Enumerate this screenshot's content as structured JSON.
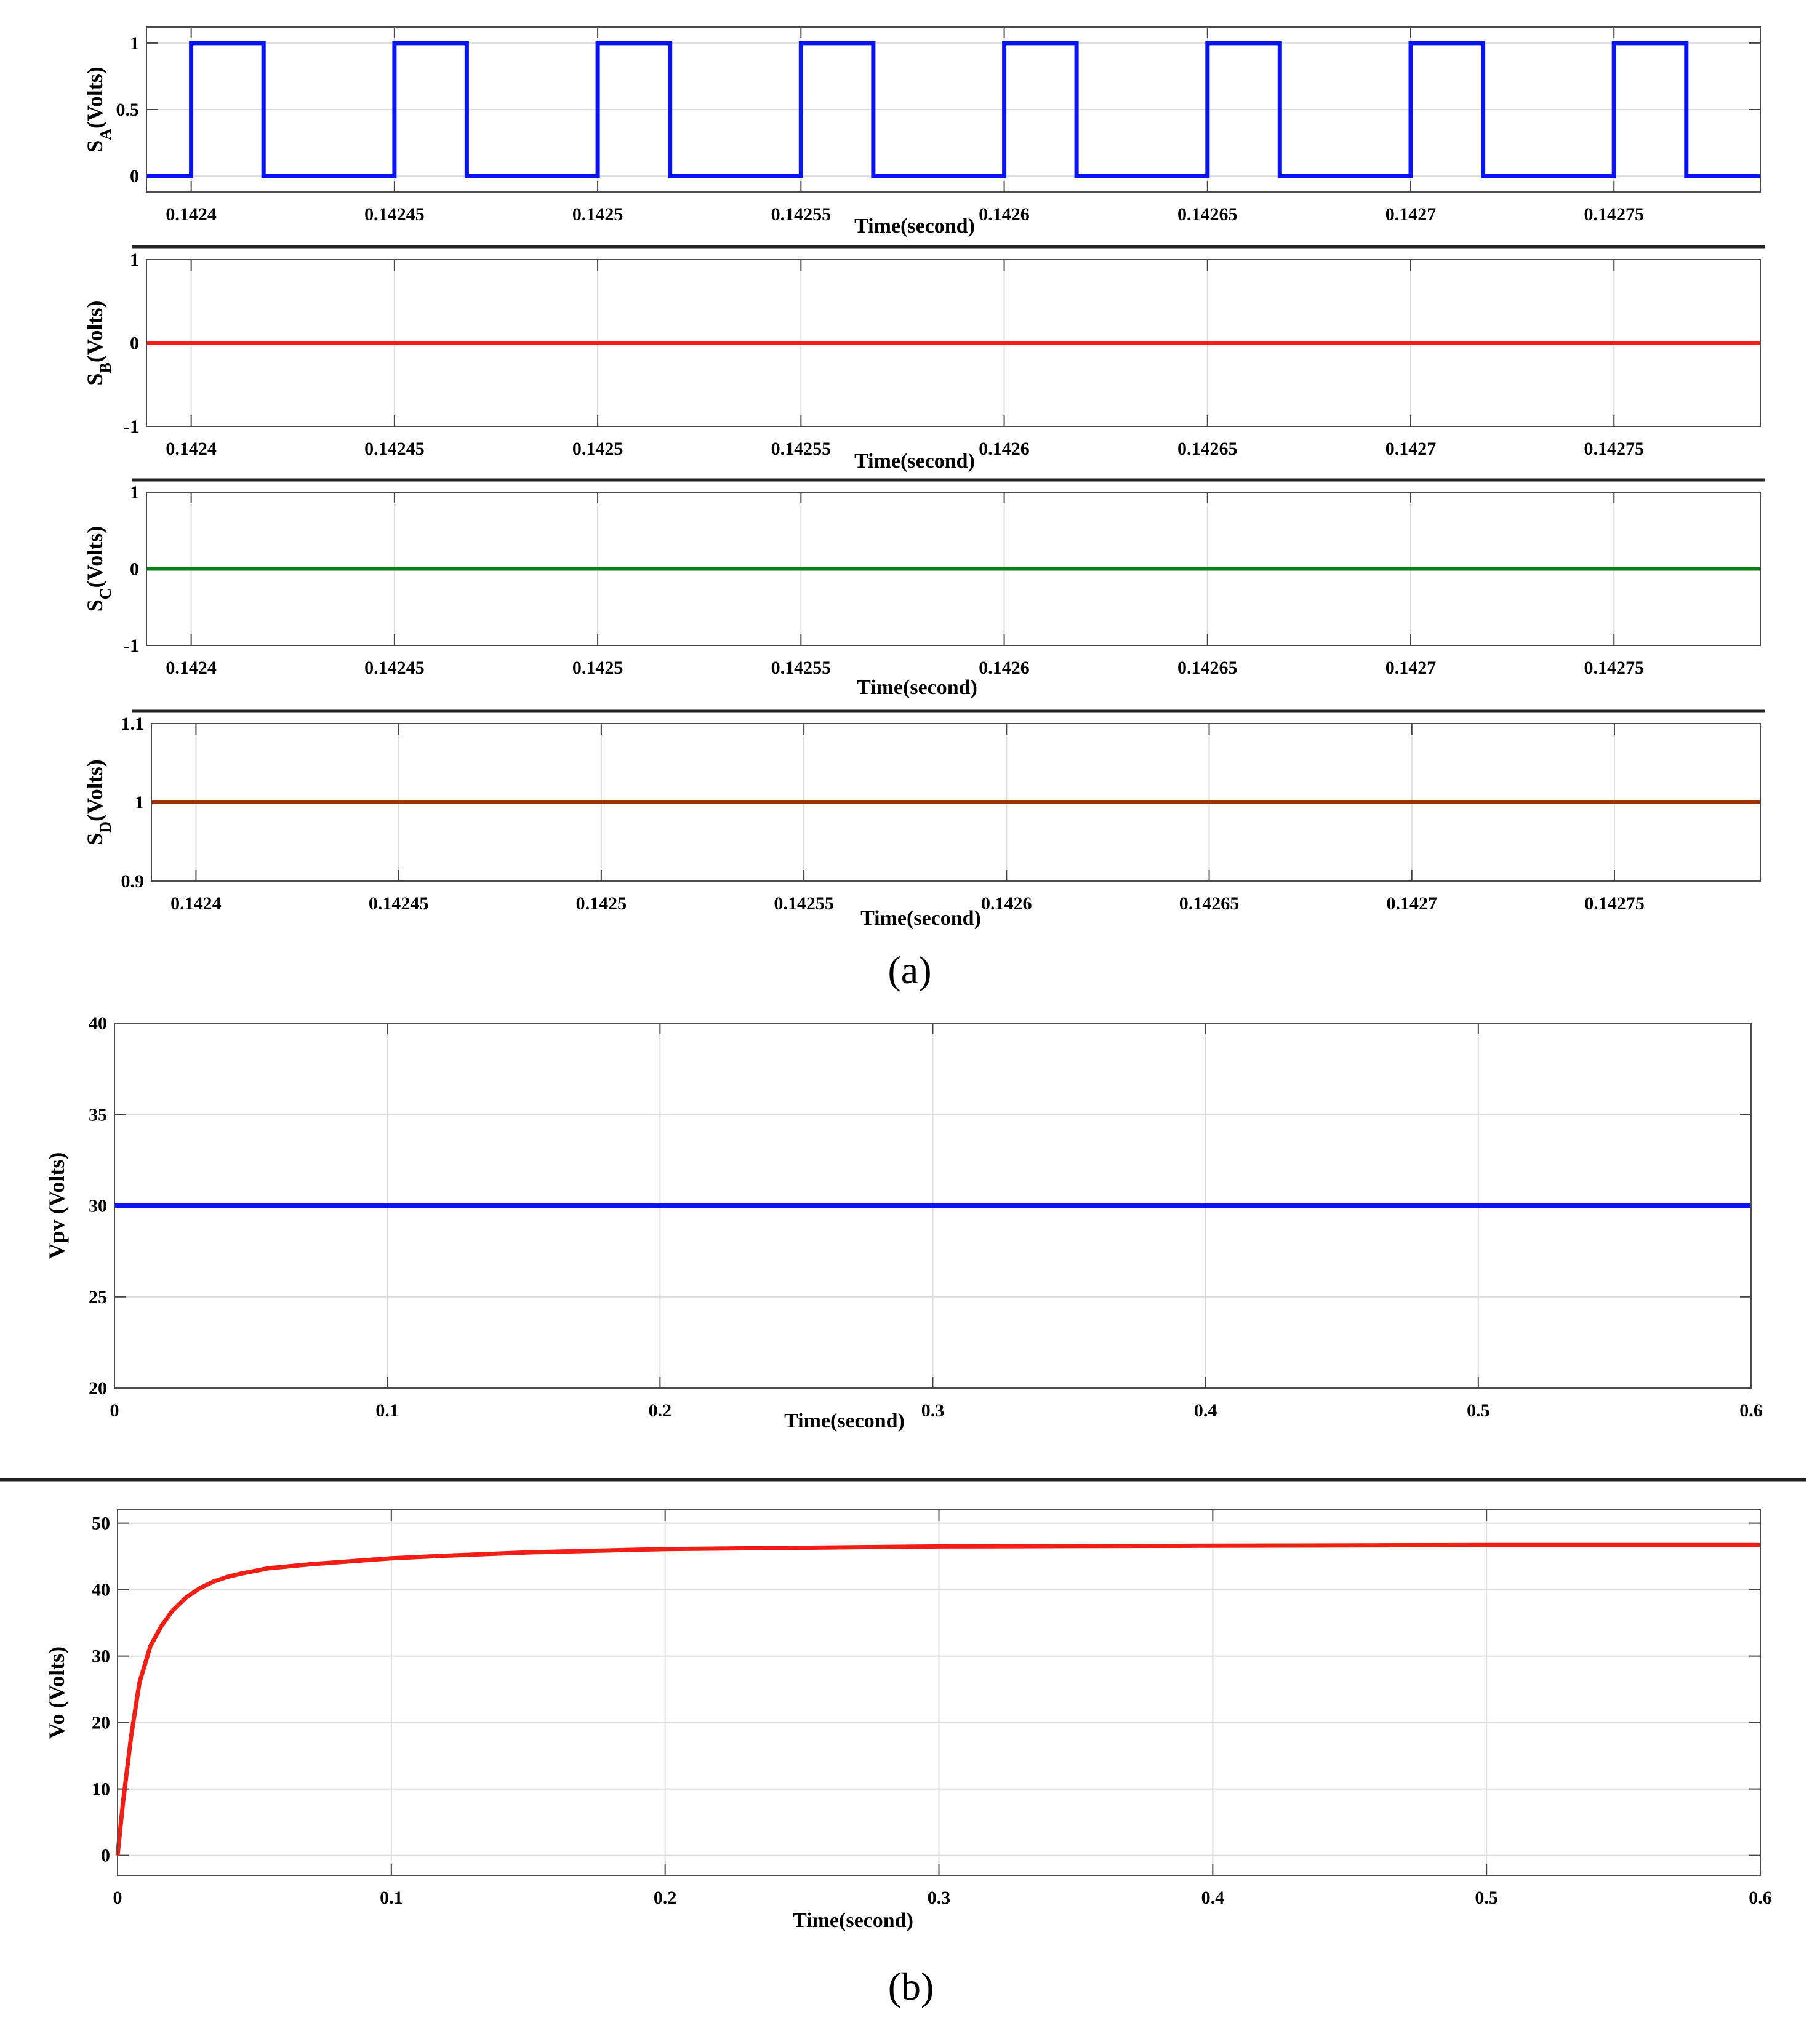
{
  "colors": {
    "blue": "#0a14f0",
    "red": "#f01e14",
    "green": "#0a7d14",
    "brown": "#a0320a",
    "vo_red": "#f01e14"
  },
  "captions": {
    "a": "(a)",
    "b": "(b)"
  },
  "chart_data": [
    {
      "id": "sa",
      "type": "line",
      "ylabel_main": "S",
      "ylabel_sub": "A",
      "ylabel_rest": "(Volts)",
      "xlabel": "Time(second)",
      "xlim": [
        0.142389,
        0.142786
      ],
      "ylim": [
        -0.12,
        1.12
      ],
      "xticks": [
        0.1424,
        0.14245,
        0.1425,
        0.14255,
        0.1426,
        0.14265,
        0.1427,
        0.14275
      ],
      "xtick_labels": [
        "0.1424",
        "0.14245",
        "0.1425",
        "0.14255",
        "0.1426",
        "0.14265",
        "0.1427",
        "0.14275"
      ],
      "yticks": [
        0,
        0.5,
        1
      ],
      "ytick_labels": [
        "0",
        "0.5",
        "1"
      ],
      "grid": true,
      "series": [
        {
          "color": "#0a14f0",
          "pulses": {
            "start": 0.1424,
            "period": 5e-05,
            "width": 1.78e-05,
            "count": 8,
            "high": 1,
            "low": 0
          }
        }
      ]
    },
    {
      "id": "sb",
      "type": "line",
      "ylabel_main": "S",
      "ylabel_sub": "B",
      "ylabel_rest": "(Volts)",
      "xlabel": "Time(second)",
      "xlim": [
        0.142389,
        0.142786
      ],
      "ylim": [
        -1,
        1
      ],
      "xticks": [
        0.1424,
        0.14245,
        0.1425,
        0.14255,
        0.1426,
        0.14265,
        0.1427,
        0.14275
      ],
      "xtick_labels": [
        "0.1424",
        "0.14245",
        "0.1425",
        "0.14255",
        "0.1426",
        "0.14265",
        "0.1427",
        "0.14275"
      ],
      "yticks": [
        -1,
        0,
        1
      ],
      "ytick_labels": [
        "-1",
        "0",
        "1"
      ],
      "grid": true,
      "series": [
        {
          "color": "#f01e14",
          "x": [
            0.142389,
            0.142786
          ],
          "y": [
            0,
            0
          ]
        }
      ]
    },
    {
      "id": "sc",
      "type": "line",
      "ylabel_main": "S",
      "ylabel_sub": "C",
      "ylabel_rest": "(Volts)",
      "xlabel": "Time(second)",
      "xlim": [
        0.142389,
        0.142786
      ],
      "ylim": [
        -1,
        1
      ],
      "xticks": [
        0.1424,
        0.14245,
        0.1425,
        0.14255,
        0.1426,
        0.14265,
        0.1427,
        0.14275
      ],
      "xtick_labels": [
        "0.1424",
        "0.14245",
        "0.1425",
        "0.14255",
        "0.1426",
        "0.14265",
        "0.1427",
        "0.14275"
      ],
      "yticks": [
        -1,
        0,
        1
      ],
      "ytick_labels": [
        "-1",
        "0",
        "1"
      ],
      "grid": true,
      "series": [
        {
          "color": "#0a7d14",
          "x": [
            0.142389,
            0.142786
          ],
          "y": [
            0,
            0
          ]
        }
      ]
    },
    {
      "id": "sd",
      "type": "line",
      "ylabel_main": "S",
      "ylabel_sub": "D",
      "ylabel_rest": "(Volts)",
      "xlabel": "Time(second)",
      "xlim": [
        0.142389,
        0.142786
      ],
      "ylim": [
        0.9,
        1.1
      ],
      "xticks": [
        0.1424,
        0.14245,
        0.1425,
        0.14255,
        0.1426,
        0.14265,
        0.1427,
        0.14275
      ],
      "xtick_labels": [
        "0.1424",
        "0.14245",
        "0.1425",
        "0.14255",
        "0.1426",
        "0.14265",
        "0.1427",
        "0.14275"
      ],
      "yticks": [
        0.9,
        1,
        1.1
      ],
      "ytick_labels": [
        "0.9",
        "1",
        "1.1"
      ],
      "grid": true,
      "series": [
        {
          "color": "#a0320a",
          "x": [
            0.142389,
            0.142786
          ],
          "y": [
            1,
            1
          ]
        }
      ]
    },
    {
      "id": "vpv",
      "type": "line",
      "ylabel": "Vpv  (Volts)",
      "xlabel": "Time(second)",
      "xlim": [
        0,
        0.6
      ],
      "ylim": [
        20,
        40
      ],
      "xticks": [
        0,
        0.1,
        0.2,
        0.3,
        0.4,
        0.5,
        0.6
      ],
      "xtick_labels": [
        "0",
        "0.1",
        "0.2",
        "0.3",
        "0.4",
        "0.5",
        "0.6"
      ],
      "yticks": [
        20,
        25,
        30,
        35,
        40
      ],
      "ytick_labels": [
        "20",
        "25",
        "30",
        "35",
        "40"
      ],
      "grid": true,
      "series": [
        {
          "color": "#0a14f0",
          "x": [
            0,
            0.6
          ],
          "y": [
            30,
            30
          ]
        }
      ]
    },
    {
      "id": "vo",
      "type": "line",
      "ylabel": "Vo (Volts)",
      "xlabel": "Time(second)",
      "xlim": [
        0,
        0.6
      ],
      "ylim": [
        -3,
        52
      ],
      "xticks": [
        0,
        0.1,
        0.2,
        0.3,
        0.4,
        0.5,
        0.6
      ],
      "xtick_labels": [
        "0",
        "0.1",
        "0.2",
        "0.3",
        "0.4",
        "0.5",
        "0.6"
      ],
      "yticks": [
        0,
        10,
        20,
        30,
        40,
        50
      ],
      "ytick_labels": [
        "0",
        "10",
        "20",
        "30",
        "40",
        "50"
      ],
      "grid": true,
      "series": [
        {
          "color": "#f01e14",
          "x": [
            0,
            0.002,
            0.005,
            0.008,
            0.012,
            0.016,
            0.02,
            0.025,
            0.03,
            0.035,
            0.04,
            0.045,
            0.05,
            0.055,
            0.06,
            0.07,
            0.08,
            0.1,
            0.12,
            0.15,
            0.2,
            0.25,
            0.3,
            0.4,
            0.5,
            0.6
          ],
          "y": [
            0,
            8,
            18,
            26,
            31.5,
            34.5,
            36.8,
            38.8,
            40.2,
            41.2,
            41.9,
            42.4,
            42.8,
            43.2,
            43.4,
            43.8,
            44.1,
            44.7,
            45.1,
            45.6,
            46.1,
            46.3,
            46.5,
            46.6,
            46.7,
            46.7
          ]
        }
      ]
    }
  ]
}
